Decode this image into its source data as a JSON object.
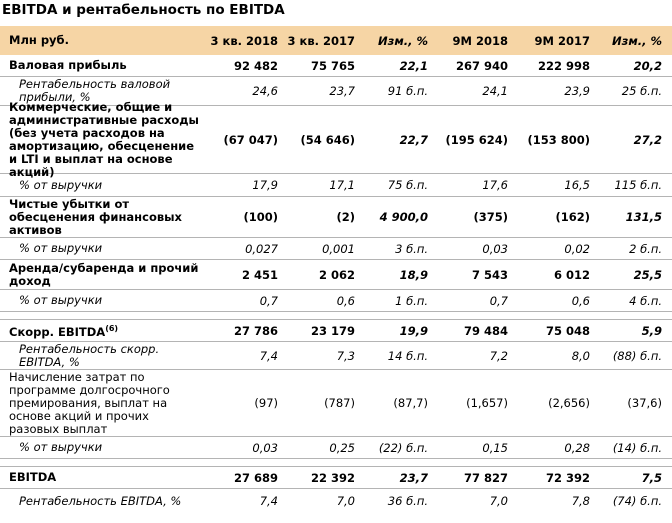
{
  "title": "EBITDA и рентабельность по EBITDA",
  "header": [
    "Млн руб.",
    "3 кв. 2018",
    "3 кв. 2017",
    "Изм., %",
    "9М 2018",
    "9М 2017",
    "Изм., %"
  ],
  "rows": [
    {
      "label": "Валовая прибыль",
      "values": [
        "92 482",
        "75 765",
        "22,1",
        "267 940",
        "222 998",
        "20,2"
      ]
    },
    {
      "label": "Рентабельность валовой прибыли, %",
      "values": [
        "24,6",
        "23,7",
        "91 б.п.",
        "24,1",
        "23,9",
        "25 б.п."
      ]
    },
    {
      "label": "Коммерческие, общие и административные расходы (без учета расходов на амортизацию, обесценение и LTI и выплат на основе акций)",
      "values": [
        "(67 047)",
        "(54 646)",
        "22,7",
        "(195 624)",
        "(153 800)",
        "27,2"
      ]
    },
    {
      "label": "% от выручки",
      "values": [
        "17,9",
        "17,1",
        "75 б.п.",
        "17,6",
        "16,5",
        "115 б.п."
      ]
    },
    {
      "label": "Чистые убытки от обесценения финансовых активов",
      "values": [
        "(100)",
        "(2)",
        "4 900,0",
        "(375)",
        "(162)",
        "131,5"
      ]
    },
    {
      "label": "% от выручки",
      "values": [
        "0,027",
        "0,001",
        "3 б.п.",
        "0,03",
        "0,02",
        "2 б.п."
      ]
    },
    {
      "label": "Аренда/субаренда и прочий доход",
      "values": [
        "2 451",
        "2 062",
        "18,9",
        "7 543",
        "6 012",
        "25,5"
      ]
    },
    {
      "label": "% от выручки",
      "values": [
        "0,7",
        "0,6",
        "1 б.п.",
        "0,7",
        "0,6",
        "4 б.п."
      ]
    },
    {
      "label": "Скорр. EBITDA",
      "footnote": "(6)",
      "values": [
        "27 786",
        "23 179",
        "19,9",
        "79 484",
        "75 048",
        "5,9"
      ]
    },
    {
      "label": "Рентабельность скорр. EBITDA, %",
      "values": [
        "7,4",
        "7,3",
        "14 б.п.",
        "7,2",
        "8,0",
        "(88) б.п."
      ]
    },
    {
      "label": "Начисление затрат по программе долгосрочного премирования, выплат на основе акций и прочих разовых выплат",
      "values": [
        "(97)",
        "(787)",
        "(87,7)",
        "(1,657)",
        "(2,656)",
        "(37,6)"
      ]
    },
    {
      "label": "% от выручки",
      "values": [
        "0,03",
        "0,25",
        "(22) б.п.",
        "0,15",
        "0,28",
        "(14) б.п."
      ]
    },
    {
      "label": "EBITDA",
      "values": [
        "27 689",
        "22 392",
        "23,7",
        "77 827",
        "72 392",
        "7,5"
      ]
    },
    {
      "label": "Рентабельность EBITDA, %",
      "values": [
        "7,4",
        "7,0",
        "36 б.п.",
        "7,0",
        "7,8",
        "(74) б.п."
      ]
    }
  ]
}
